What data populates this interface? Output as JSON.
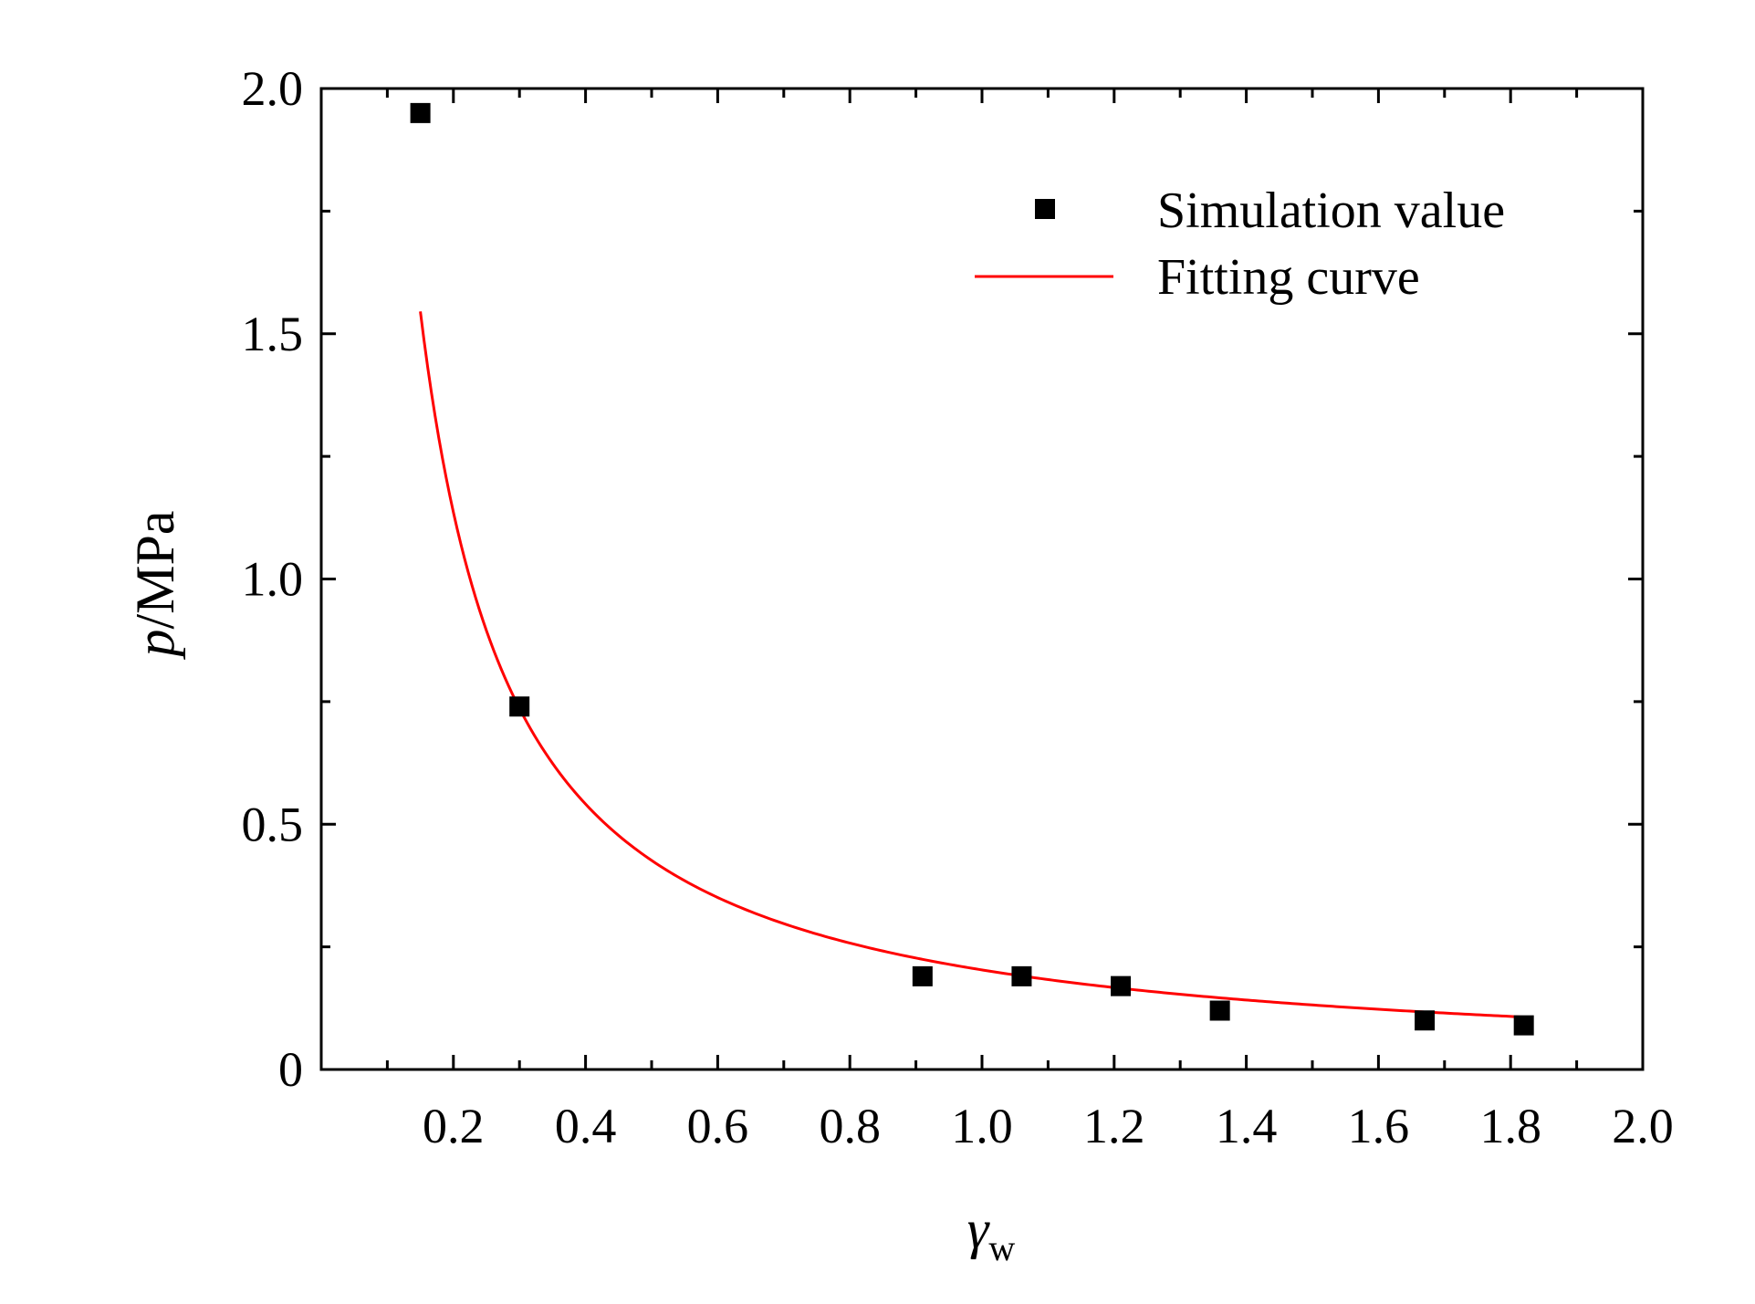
{
  "chart_data": {
    "type": "scatter",
    "title": "",
    "xlabel": {
      "main": "γ",
      "subscript": "w"
    },
    "ylabel": {
      "italic": "p",
      "rest": "/MPa"
    },
    "xlim": [
      0,
      2.0
    ],
    "ylim": [
      0,
      2.0
    ],
    "grid": false,
    "legend_position": "top-right",
    "x_ticks": [
      "0.2",
      "0.4",
      "0.6",
      "0.8",
      "1.0",
      "1.2",
      "1.4",
      "1.6",
      "1.8",
      "2.0"
    ],
    "y_ticks": [
      "0",
      "0.5",
      "1.0",
      "1.5",
      "2.0"
    ],
    "series": [
      {
        "name": "Simulation value",
        "kind": "points",
        "marker": "square",
        "color": "#000000",
        "x": [
          0.15,
          0.3,
          0.91,
          1.06,
          1.21,
          1.36,
          1.67,
          1.82
        ],
        "y": [
          1.95,
          0.74,
          0.19,
          0.19,
          0.17,
          0.12,
          0.1,
          0.09
        ]
      },
      {
        "name": "Fitting curve",
        "kind": "line",
        "color": "#ff0000",
        "x_range": [
          0.15,
          1.82
        ],
        "model": "p = 0.203 / γw^1.07"
      }
    ]
  }
}
